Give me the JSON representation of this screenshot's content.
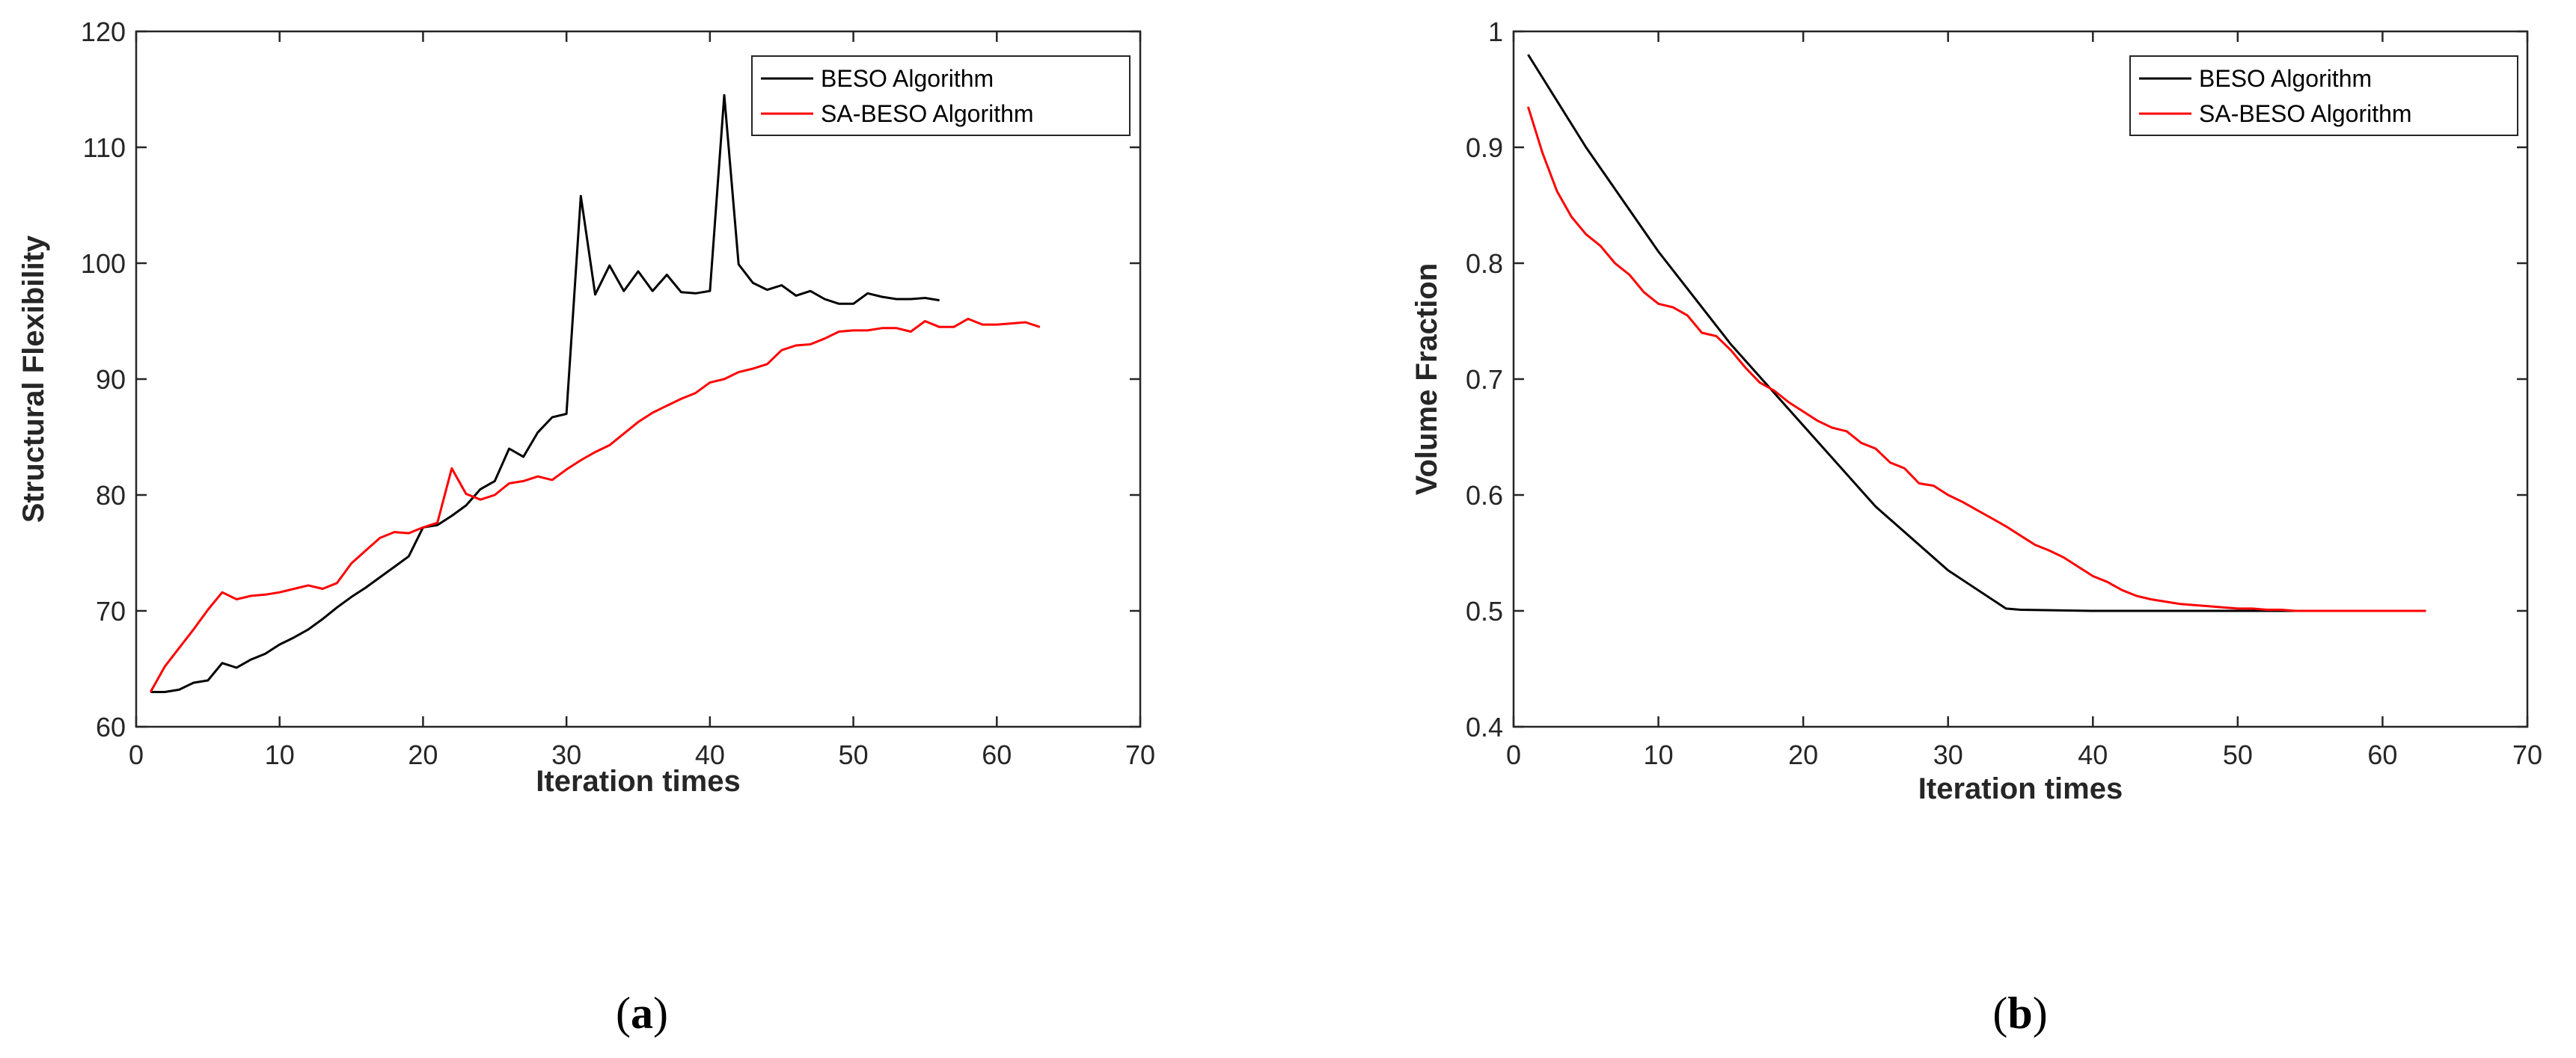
{
  "colors": {
    "beso": "#000000",
    "sa_beso": "#ff0000",
    "axis": "#262626"
  },
  "chart_data": [
    {
      "type": "line",
      "caption": {
        "open": "(",
        "letter": "a",
        "close": ")"
      },
      "title": "",
      "xlabel": "Iteration times",
      "ylabel": "Structural Flexibility",
      "xlim": [
        0,
        70
      ],
      "ylim": [
        60,
        120
      ],
      "xticks": [
        0,
        10,
        20,
        30,
        40,
        50,
        60,
        70
      ],
      "yticks": [
        60,
        70,
        80,
        90,
        100,
        110,
        120
      ],
      "xtick_labels": [
        "0",
        "10",
        "20",
        "30",
        "40",
        "50",
        "60",
        "70"
      ],
      "ytick_labels": [
        "60",
        "70",
        "80",
        "90",
        "100",
        "110",
        "120"
      ],
      "grid": false,
      "legend_position": "top-right",
      "series": [
        {
          "name": "BESO Algorithm",
          "color": "#000000",
          "x": [
            1,
            2,
            3,
            4,
            5,
            6,
            7,
            8,
            9,
            10,
            11,
            12,
            13,
            14,
            15,
            16,
            17,
            18,
            19,
            20,
            21,
            22,
            23,
            24,
            25,
            26,
            27,
            28,
            29,
            30,
            31,
            32,
            33,
            34,
            35,
            36,
            37,
            38,
            39,
            40,
            41,
            42,
            43,
            44,
            45,
            46,
            47,
            48,
            49,
            50,
            51,
            52,
            53,
            54,
            55,
            56
          ],
          "y": [
            63,
            63,
            63.2,
            63.8,
            64,
            65.5,
            65.1,
            65.8,
            66.3,
            67.1,
            67.7,
            68.4,
            69.3,
            70.3,
            71.2,
            72,
            72.9,
            73.8,
            74.7,
            77.2,
            77.4,
            78.2,
            79.1,
            80.5,
            81.2,
            84,
            83.3,
            85.4,
            86.7,
            87,
            105.8,
            97.3,
            99.8,
            97.6,
            99.3,
            97.6,
            99,
            97.5,
            97.4,
            97.6,
            114.5,
            99.9,
            98.3,
            97.7,
            98.1,
            97.2,
            97.6,
            96.9,
            96.5,
            96.5,
            97.4,
            97.1,
            96.9,
            96.9,
            97,
            96.8
          ]
        },
        {
          "name": "SA-BESO Algorithm",
          "color": "#ff0000",
          "x": [
            1,
            2,
            3,
            4,
            5,
            6,
            7,
            8,
            9,
            10,
            11,
            12,
            13,
            14,
            15,
            16,
            17,
            18,
            19,
            20,
            21,
            22,
            23,
            24,
            25,
            26,
            27,
            28,
            29,
            30,
            31,
            32,
            33,
            34,
            35,
            36,
            37,
            38,
            39,
            40,
            41,
            42,
            43,
            44,
            45,
            46,
            47,
            48,
            49,
            50,
            51,
            52,
            53,
            54,
            55,
            56,
            57,
            58,
            59,
            60,
            61,
            62,
            63
          ],
          "y": [
            63,
            65.2,
            66.8,
            68.4,
            70.1,
            71.6,
            71,
            71.3,
            71.4,
            71.6,
            71.9,
            72.2,
            71.9,
            72.4,
            74.1,
            75.2,
            76.3,
            76.8,
            76.7,
            77.2,
            77.6,
            82.3,
            80.1,
            79.6,
            80,
            81,
            81.2,
            81.6,
            81.3,
            82.2,
            83,
            83.7,
            84.3,
            85.3,
            86.3,
            87.1,
            87.7,
            88.3,
            88.8,
            89.7,
            90,
            90.6,
            90.9,
            91.3,
            92.5,
            92.9,
            93,
            93.5,
            94.1,
            94.2,
            94.2,
            94.4,
            94.4,
            94.1,
            95,
            94.5,
            94.5,
            95.2,
            94.7,
            94.7,
            94.8,
            94.9,
            94.5
          ]
        }
      ]
    },
    {
      "type": "line",
      "caption": {
        "open": "(",
        "letter": "b",
        "close": ")"
      },
      "title": "",
      "xlabel": "Iteration times",
      "ylabel": "Volume Fraction",
      "xlim": [
        0,
        70
      ],
      "ylim": [
        0.4,
        1
      ],
      "xticks": [
        0,
        10,
        20,
        30,
        40,
        50,
        60,
        70
      ],
      "yticks": [
        0.4,
        0.5,
        0.6,
        0.7,
        0.8,
        0.9,
        1
      ],
      "xtick_labels": [
        "0",
        "10",
        "20",
        "30",
        "40",
        "50",
        "60",
        "70"
      ],
      "ytick_labels": [
        "0.4",
        "0.5",
        "0.6",
        "0.7",
        "0.8",
        "0.9",
        "1"
      ],
      "grid": false,
      "legend_position": "top-right",
      "series": [
        {
          "name": "BESO Algorithm",
          "color": "#000000",
          "x": [
            1,
            5,
            10,
            15,
            20,
            25,
            30,
            34,
            35,
            40,
            45,
            50,
            55
          ],
          "y": [
            0.98,
            0.9,
            0.81,
            0.73,
            0.66,
            0.59,
            0.535,
            0.502,
            0.501,
            0.5,
            0.5,
            0.5,
            0.5
          ]
        },
        {
          "name": "SA-BESO Algorithm",
          "color": "#ff0000",
          "x": [
            1,
            2,
            3,
            4,
            5,
            6,
            7,
            8,
            9,
            10,
            11,
            12,
            13,
            14,
            15,
            16,
            17,
            18,
            19,
            20,
            21,
            22,
            23,
            24,
            25,
            26,
            27,
            28,
            29,
            30,
            31,
            32,
            33,
            34,
            35,
            36,
            37,
            38,
            39,
            40,
            41,
            42,
            43,
            44,
            45,
            46,
            47,
            48,
            49,
            50,
            51,
            52,
            53,
            54,
            55,
            56,
            57,
            58,
            59,
            60,
            61,
            62,
            63
          ],
          "y": [
            0.935,
            0.895,
            0.862,
            0.84,
            0.825,
            0.815,
            0.8,
            0.79,
            0.775,
            0.765,
            0.762,
            0.755,
            0.74,
            0.737,
            0.725,
            0.71,
            0.697,
            0.69,
            0.68,
            0.672,
            0.664,
            0.658,
            0.655,
            0.645,
            0.64,
            0.628,
            0.623,
            0.61,
            0.608,
            0.6,
            0.594,
            0.587,
            0.58,
            0.573,
            0.565,
            0.557,
            0.552,
            0.546,
            0.538,
            0.53,
            0.525,
            0.518,
            0.513,
            0.51,
            0.508,
            0.506,
            0.505,
            0.504,
            0.503,
            0.502,
            0.502,
            0.501,
            0.501,
            0.5,
            0.5,
            0.5,
            0.5,
            0.5,
            0.5,
            0.5,
            0.5,
            0.5,
            0.5
          ]
        }
      ]
    }
  ]
}
